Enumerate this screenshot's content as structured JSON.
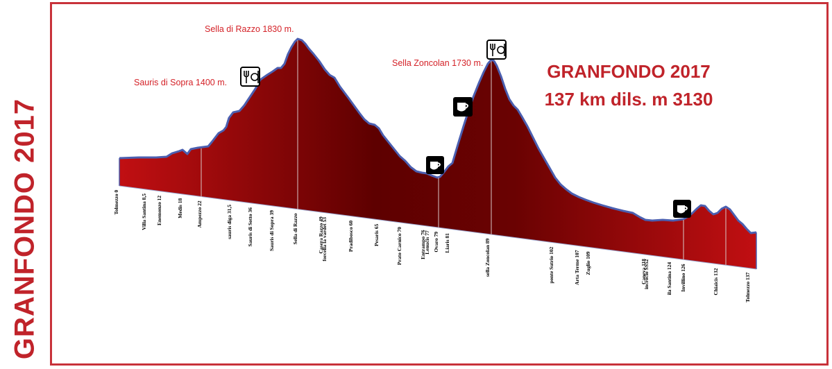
{
  "side_title": "GRANFONDO 2017",
  "heading": {
    "line1": "GRANFONDO 2017",
    "line2": "137 km  dils. m 3130"
  },
  "peaks": [
    {
      "label": "Sella di Razzo 1830 m."
    },
    {
      "label": "Sauris di Sopra 1400 m."
    },
    {
      "label": "Sella Zoncolan 1730 m."
    }
  ],
  "points": [
    {
      "name": "Tolmezzo",
      "km": "0"
    },
    {
      "name": "Villa Santina",
      "km": "8,5"
    },
    {
      "name": "Enemonzo",
      "km": "12"
    },
    {
      "name": "Medis",
      "km": "18"
    },
    {
      "name": "Ampezzo",
      "km": "22"
    },
    {
      "name": "sauris diga",
      "km": "31,5"
    },
    {
      "name": "Sauris di Sotto",
      "km": "36"
    },
    {
      "name": "Sauris di Sopra",
      "km": "39"
    },
    {
      "name": "Sella di Razzo",
      "km": ""
    },
    {
      "name": "Casera Razzo",
      "km": "49"
    },
    {
      "name": "forcella la vardet",
      "km": "53"
    },
    {
      "name": "Pradibosco",
      "km": "60"
    },
    {
      "name": "Pesaris",
      "km": "65"
    },
    {
      "name": "Prato Carnico",
      "km": "70"
    },
    {
      "name": "Entrampo",
      "km": "76"
    },
    {
      "name": "Lenucis",
      "km": "77"
    },
    {
      "name": "Ovaro",
      "km": "79"
    },
    {
      "name": "Liaris",
      "km": "81"
    },
    {
      "name": "sella Zoncolan",
      "km": "89"
    },
    {
      "name": "ponte Sutrio",
      "km": "102"
    },
    {
      "name": "Arta Terme",
      "km": "107"
    },
    {
      "name": "Zuglio",
      "km": "109"
    },
    {
      "name": "Caneva",
      "km": "118"
    },
    {
      "name": "incrocio SS52",
      "km": ""
    },
    {
      "name": "ila Santina",
      "km": "124"
    },
    {
      "name": "Invillino",
      "km": "126"
    },
    {
      "name": "Chiaicis",
      "km": "132"
    },
    {
      "name": "Tolmezzo",
      "km": "137"
    }
  ],
  "icons": [
    {
      "name": "restaurant-icon"
    },
    {
      "name": "restaurant-icon"
    },
    {
      "name": "coffee-icon"
    },
    {
      "name": "coffee-icon"
    },
    {
      "name": "coffee-icon"
    }
  ],
  "colors": {
    "title_red": "#c0232a",
    "fill_dark": "#5a0000",
    "fill_light": "#c10f12",
    "outline_blue": "#4b5fb0",
    "frame": "#c8323a"
  }
}
